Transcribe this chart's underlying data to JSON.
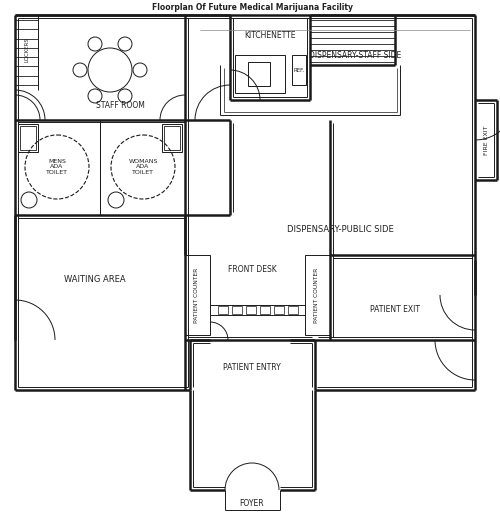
{
  "title": "Floorplan Of Future Medical Marijuana Facility",
  "wall_color": "#1a1a1a",
  "wlw": 1.8,
  "tlw": 0.7,
  "lfs": 5.0,
  "labels": {
    "staff_room": "STAFF ROOM",
    "kitchenette": "KITCHENETTE",
    "dispensary_staff": "DISPENSARY-STAFF SIDE",
    "dispensary_public": "DISPENSARY-PUBLIC SIDE",
    "mens_toilet": "MENS\nADA\nTOILET",
    "womans_toilet": "WOMANS\nADA\nTOILET",
    "waiting_area": "WAITING AREA",
    "front_desk": "FRONT DESK",
    "patient_counter1": "PATIENT COUNTER",
    "patient_counter2": "PATIENT COUNTER",
    "patient_entry": "PATIENT ENTRY",
    "patient_exit": "PATIENT EXIT",
    "foyer": "FOYER",
    "fire_exit": "FIRE EXIT",
    "lockers": "LOCKERS",
    "ref": "REF."
  }
}
